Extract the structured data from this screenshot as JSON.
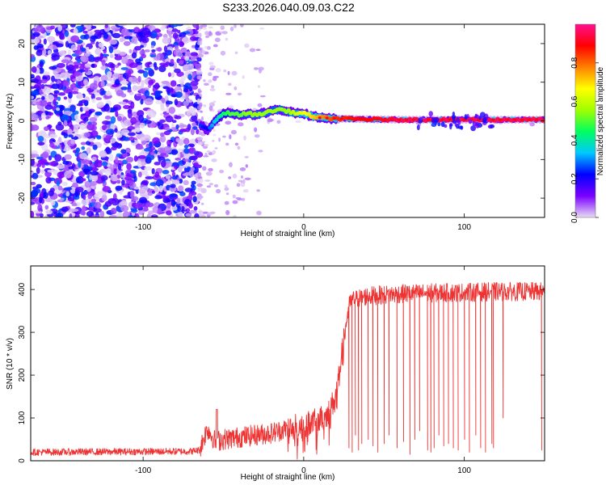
{
  "title": "S233.2026.040.09.03.C22",
  "chart_data": [
    {
      "type": "heatmap",
      "name": "spectrogram",
      "xlabel": "Height of straight line (km)",
      "ylabel": "Frequency (Hz)",
      "xlim": [
        -170,
        150
      ],
      "ylim": [
        -25,
        25
      ],
      "xticks": [
        -100,
        0,
        100
      ],
      "yticks": [
        -20,
        -10,
        0,
        10,
        20
      ],
      "xtick_labels": [
        "-100",
        "0",
        "100"
      ],
      "ytick_labels": [
        "-20",
        "-10",
        "0",
        "10",
        "20"
      ],
      "noise_region_x": [
        -170,
        -65
      ],
      "transition_x": -65,
      "signal_track": {
        "x": [
          -64,
          -60,
          -58,
          -55,
          -52,
          -50,
          -45,
          -40,
          -35,
          -30,
          -25,
          -20,
          -15,
          -10,
          -5,
          0,
          5,
          10,
          20,
          40,
          60,
          80,
          100,
          120,
          150
        ],
        "freq": [
          -1.0,
          -2.5,
          -1.5,
          0.0,
          1.0,
          2.0,
          2.0,
          1.5,
          2.0,
          1.5,
          2.0,
          2.5,
          3.0,
          2.5,
          2.0,
          2.0,
          1.2,
          0.8,
          0.6,
          0.4,
          0.3,
          0.3,
          0.3,
          0.3,
          0.3
        ],
        "amplitude": [
          0.25,
          0.2,
          0.3,
          0.35,
          0.4,
          0.45,
          0.5,
          0.5,
          0.55,
          0.55,
          0.55,
          0.55,
          0.55,
          0.55,
          0.6,
          0.65,
          0.7,
          0.75,
          0.85,
          0.9,
          0.95,
          0.95,
          0.95,
          0.95,
          0.95
        ]
      },
      "colorbar": {
        "label": "Normalized spectral amplitude",
        "ticks": [
          0.0,
          0.2,
          0.4,
          0.6,
          0.8
        ],
        "tick_labels": [
          "0.0",
          "0.2",
          "0.4",
          "0.6",
          "0.8"
        ],
        "range": [
          0.0,
          1.0
        ],
        "colors": [
          "#e8dcf4",
          "#7a00ff",
          "#0000ff",
          "#00c8ff",
          "#00ff60",
          "#a0ff00",
          "#ffff00",
          "#ff8000",
          "#ff0000",
          "#ff1090"
        ]
      }
    },
    {
      "type": "line",
      "name": "snr",
      "xlabel": "Height of straight line (km)",
      "ylabel": "SNR (10 * v/v)",
      "xlim": [
        -170,
        150
      ],
      "ylim": [
        0,
        455
      ],
      "xticks": [
        -100,
        0,
        100
      ],
      "yticks": [
        0,
        100,
        200,
        300,
        400
      ],
      "xtick_labels": [
        "-100",
        "0",
        "100"
      ],
      "ytick_labels": [
        "0",
        "100",
        "200",
        "300",
        "400"
      ],
      "color": "#ee3333",
      "trend": {
        "x": [
          -170,
          -70,
          -65,
          -60,
          -55,
          -50,
          -40,
          -30,
          -20,
          -10,
          0,
          10,
          15,
          20,
          25,
          28,
          30,
          40,
          60,
          80,
          100,
          120,
          150
        ],
        "y": [
          20,
          22,
          25,
          75,
          45,
          50,
          55,
          60,
          65,
          75,
          85,
          95,
          110,
          150,
          280,
          360,
          375,
          385,
          390,
          392,
          393,
          395,
          395
        ]
      },
      "noise": {
        "x_breaks": [
          -170,
          -65,
          -10,
          25,
          150
        ],
        "amplitude": [
          8,
          25,
          30,
          22
        ]
      },
      "spike": {
        "x": -54,
        "y": 120
      },
      "dropouts": {
        "x": [
          28,
          30,
          32,
          34,
          36,
          40,
          43,
          46,
          50,
          53,
          58,
          62,
          66,
          69,
          72,
          77,
          79,
          81,
          84,
          87,
          90,
          93,
          96,
          100,
          103,
          107,
          110,
          113,
          117,
          118,
          124,
          148
        ],
        "y": [
          30,
          20,
          60,
          25,
          40,
          50,
          35,
          20,
          40,
          60,
          30,
          45,
          15,
          50,
          70,
          25,
          20,
          30,
          60,
          35,
          40,
          30,
          25,
          50,
          20,
          60,
          30,
          20,
          40,
          30,
          100,
          25
        ]
      }
    }
  ]
}
